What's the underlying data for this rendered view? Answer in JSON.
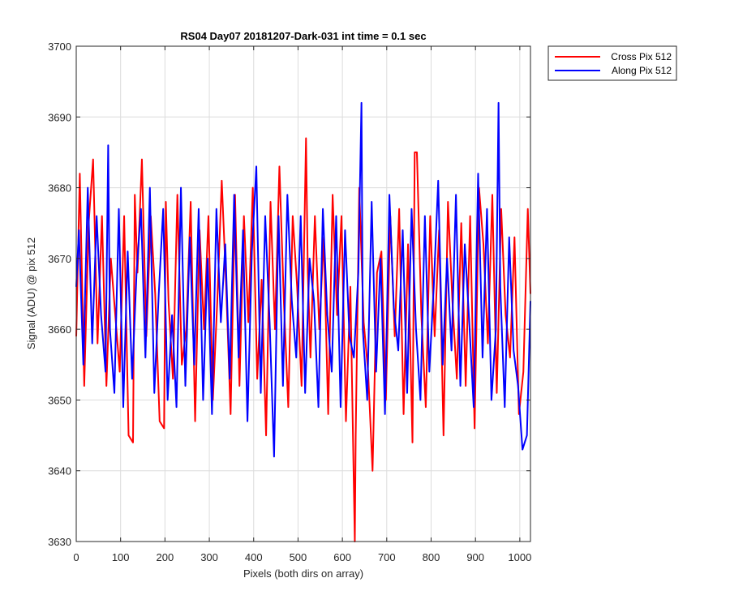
{
  "chart_data": {
    "type": "line",
    "title": "RS04 Day07 20181207-Dark-031 int time = 0.1 sec",
    "xlabel": "Pixels (both dirs on array)",
    "ylabel": "Signal (ADU) @ pix 512",
    "xlim": [
      0,
      1024
    ],
    "ylim": [
      3630,
      3700
    ],
    "xticks": [
      0,
      100,
      200,
      300,
      400,
      500,
      600,
      700,
      800,
      900,
      1000
    ],
    "yticks": [
      3630,
      3640,
      3650,
      3660,
      3670,
      3680,
      3690,
      3700
    ],
    "grid": true,
    "legend_position": "outside-top-right",
    "series": [
      {
        "name": "Cross Pix 512",
        "color": "#ff0000",
        "x": [
          0,
          8,
          18,
          28,
          38,
          48,
          58,
          68,
          78,
          88,
          98,
          108,
          118,
          128,
          132,
          138,
          148,
          158,
          168,
          178,
          188,
          198,
          202,
          208,
          218,
          228,
          238,
          248,
          258,
          268,
          278,
          288,
          298,
          308,
          318,
          328,
          338,
          348,
          358,
          368,
          378,
          388,
          398,
          408,
          418,
          428,
          438,
          448,
          458,
          468,
          478,
          488,
          498,
          508,
          518,
          522,
          528,
          538,
          548,
          558,
          568,
          578,
          588,
          598,
          608,
          618,
          628,
          630,
          638,
          648,
          658,
          668,
          678,
          688,
          698,
          708,
          718,
          728,
          738,
          748,
          758,
          763,
          768,
          778,
          788,
          798,
          808,
          818,
          828,
          838,
          848,
          858,
          868,
          878,
          888,
          898,
          908,
          918,
          928,
          938,
          948,
          958,
          968,
          978,
          988,
          998,
          1008,
          1018,
          1024
        ],
        "y": [
          3659,
          3682,
          3652,
          3675,
          3684,
          3658,
          3676,
          3652,
          3670,
          3662,
          3654,
          3676,
          3645,
          3644,
          3679,
          3668,
          3684,
          3659,
          3676,
          3665,
          3647,
          3646,
          3678,
          3664,
          3653,
          3679,
          3655,
          3660,
          3678,
          3647,
          3674,
          3660,
          3676,
          3650,
          3664,
          3681,
          3666,
          3648,
          3679,
          3652,
          3676,
          3661,
          3680,
          3653,
          3667,
          3645,
          3678,
          3660,
          3683,
          3664,
          3649,
          3676,
          3666,
          3652,
          3687,
          3668,
          3656,
          3676,
          3660,
          3673,
          3648,
          3679,
          3662,
          3676,
          3647,
          3666,
          3630,
          3645,
          3680,
          3661,
          3654,
          3640,
          3668,
          3671,
          3650,
          3676,
          3659,
          3677,
          3648,
          3672,
          3644,
          3685,
          3685,
          3662,
          3649,
          3676,
          3659,
          3674,
          3645,
          3678,
          3664,
          3653,
          3675,
          3652,
          3676,
          3646,
          3680,
          3672,
          3658,
          3679,
          3651,
          3677,
          3662,
          3656,
          3673,
          3648,
          3654,
          3677,
          3665
        ]
      },
      {
        "name": "Along Pix 512",
        "color": "#0000ff",
        "x": [
          0,
          6,
          16,
          26,
          36,
          46,
          56,
          66,
          72,
          76,
          86,
          96,
          106,
          116,
          126,
          136,
          146,
          156,
          166,
          176,
          186,
          196,
          206,
          216,
          226,
          236,
          246,
          256,
          266,
          276,
          286,
          296,
          306,
          316,
          326,
          336,
          346,
          356,
          366,
          376,
          386,
          396,
          406,
          416,
          426,
          436,
          446,
          456,
          466,
          476,
          486,
          496,
          506,
          516,
          526,
          536,
          546,
          556,
          566,
          576,
          586,
          596,
          606,
          616,
          626,
          636,
          643,
          646,
          656,
          666,
          676,
          686,
          696,
          706,
          716,
          726,
          736,
          746,
          756,
          766,
          776,
          786,
          796,
          806,
          816,
          826,
          836,
          846,
          856,
          866,
          876,
          886,
          896,
          906,
          916,
          926,
          936,
          946,
          952,
          956,
          966,
          976,
          986,
          996,
          1006,
          1016,
          1024
        ],
        "y": [
          3666,
          3674,
          3655,
          3680,
          3658,
          3676,
          3662,
          3654,
          3686,
          3660,
          3651,
          3677,
          3649,
          3671,
          3653,
          3668,
          3677,
          3656,
          3680,
          3651,
          3665,
          3677,
          3650,
          3662,
          3649,
          3680,
          3652,
          3673,
          3655,
          3677,
          3650,
          3670,
          3648,
          3677,
          3661,
          3672,
          3653,
          3679,
          3656,
          3674,
          3647,
          3671,
          3683,
          3651,
          3676,
          3661,
          3642,
          3676,
          3652,
          3679,
          3664,
          3656,
          3676,
          3651,
          3670,
          3664,
          3649,
          3677,
          3662,
          3654,
          3676,
          3649,
          3674,
          3659,
          3656,
          3668,
          3692,
          3660,
          3650,
          3678,
          3654,
          3670,
          3648,
          3679,
          3663,
          3657,
          3674,
          3651,
          3677,
          3660,
          3650,
          3676,
          3654,
          3666,
          3681,
          3655,
          3670,
          3657,
          3679,
          3652,
          3672,
          3661,
          3649,
          3682,
          3656,
          3677,
          3650,
          3660,
          3692,
          3666,
          3649,
          3673,
          3657,
          3652,
          3643,
          3645,
          3664
        ]
      }
    ]
  }
}
